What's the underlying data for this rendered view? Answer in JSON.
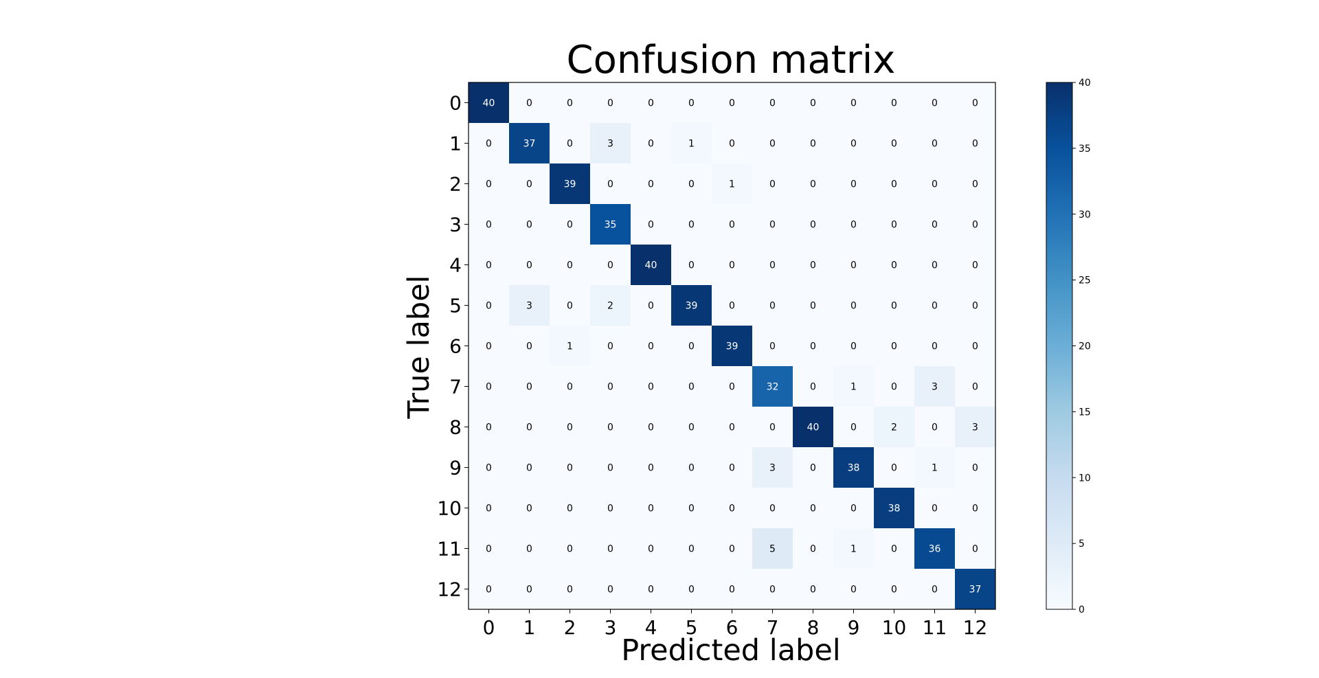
{
  "chart_data": {
    "type": "heatmap",
    "title": "Confusion matrix",
    "xlabel": "Predicted label",
    "ylabel": "True label",
    "x_categories": [
      "0",
      "1",
      "2",
      "3",
      "4",
      "5",
      "6",
      "7",
      "8",
      "9",
      "10",
      "11",
      "12"
    ],
    "y_categories": [
      "0",
      "1",
      "2",
      "3",
      "4",
      "5",
      "6",
      "7",
      "8",
      "9",
      "10",
      "11",
      "12"
    ],
    "matrix": [
      [
        40,
        0,
        0,
        0,
        0,
        0,
        0,
        0,
        0,
        0,
        0,
        0,
        0
      ],
      [
        0,
        37,
        0,
        3,
        0,
        1,
        0,
        0,
        0,
        0,
        0,
        0,
        0
      ],
      [
        0,
        0,
        39,
        0,
        0,
        0,
        1,
        0,
        0,
        0,
        0,
        0,
        0
      ],
      [
        0,
        0,
        0,
        35,
        0,
        0,
        0,
        0,
        0,
        0,
        0,
        0,
        0
      ],
      [
        0,
        0,
        0,
        0,
        40,
        0,
        0,
        0,
        0,
        0,
        0,
        0,
        0
      ],
      [
        0,
        3,
        0,
        2,
        0,
        39,
        0,
        0,
        0,
        0,
        0,
        0,
        0
      ],
      [
        0,
        0,
        1,
        0,
        0,
        0,
        39,
        0,
        0,
        0,
        0,
        0,
        0
      ],
      [
        0,
        0,
        0,
        0,
        0,
        0,
        0,
        32,
        0,
        1,
        0,
        3,
        0
      ],
      [
        0,
        0,
        0,
        0,
        0,
        0,
        0,
        0,
        40,
        0,
        2,
        0,
        3
      ],
      [
        0,
        0,
        0,
        0,
        0,
        0,
        0,
        3,
        0,
        38,
        0,
        1,
        0
      ],
      [
        0,
        0,
        0,
        0,
        0,
        0,
        0,
        0,
        0,
        0,
        38,
        0,
        0
      ],
      [
        0,
        0,
        0,
        0,
        0,
        0,
        0,
        5,
        0,
        1,
        0,
        36,
        0
      ],
      [
        0,
        0,
        0,
        0,
        0,
        0,
        0,
        0,
        0,
        0,
        0,
        0,
        37
      ]
    ],
    "colormap": "Blues",
    "colorbar": {
      "min": 0,
      "max": 40,
      "ticks": [
        "0",
        "5",
        "10",
        "15",
        "20",
        "25",
        "30",
        "35",
        "40"
      ]
    },
    "grid": false,
    "legend": "none"
  }
}
